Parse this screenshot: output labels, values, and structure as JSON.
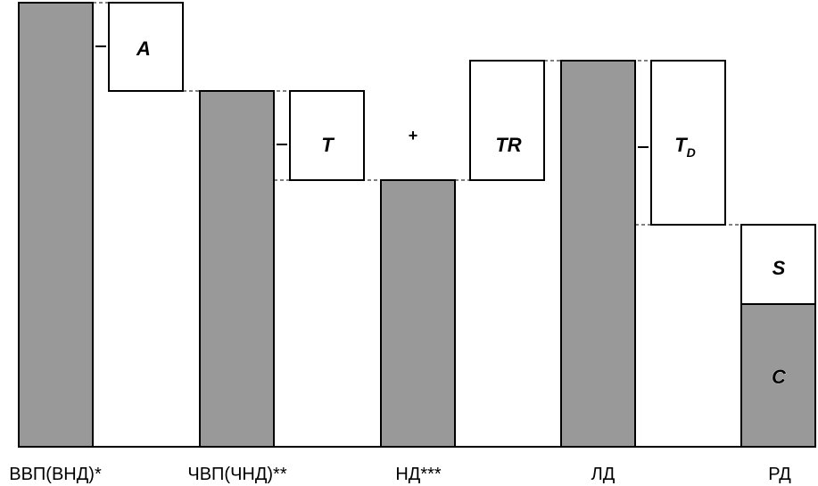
{
  "categories": {
    "gdp": "ВВП(ВНД)*",
    "ngdp": "ЧВП(ЧНД)**",
    "ni": "НД***",
    "pi": "ЛД",
    "di": "РД"
  },
  "boxes": {
    "a": "A",
    "t": "T",
    "tr": "TR",
    "td_main": "T",
    "td_sub": "D",
    "s": "S",
    "c": "C"
  },
  "operators": {
    "minus": "–",
    "plus": "+"
  },
  "colors": {
    "gray_bar": "#999999",
    "white_box": "#ffffff",
    "outline": "#000000"
  }
}
